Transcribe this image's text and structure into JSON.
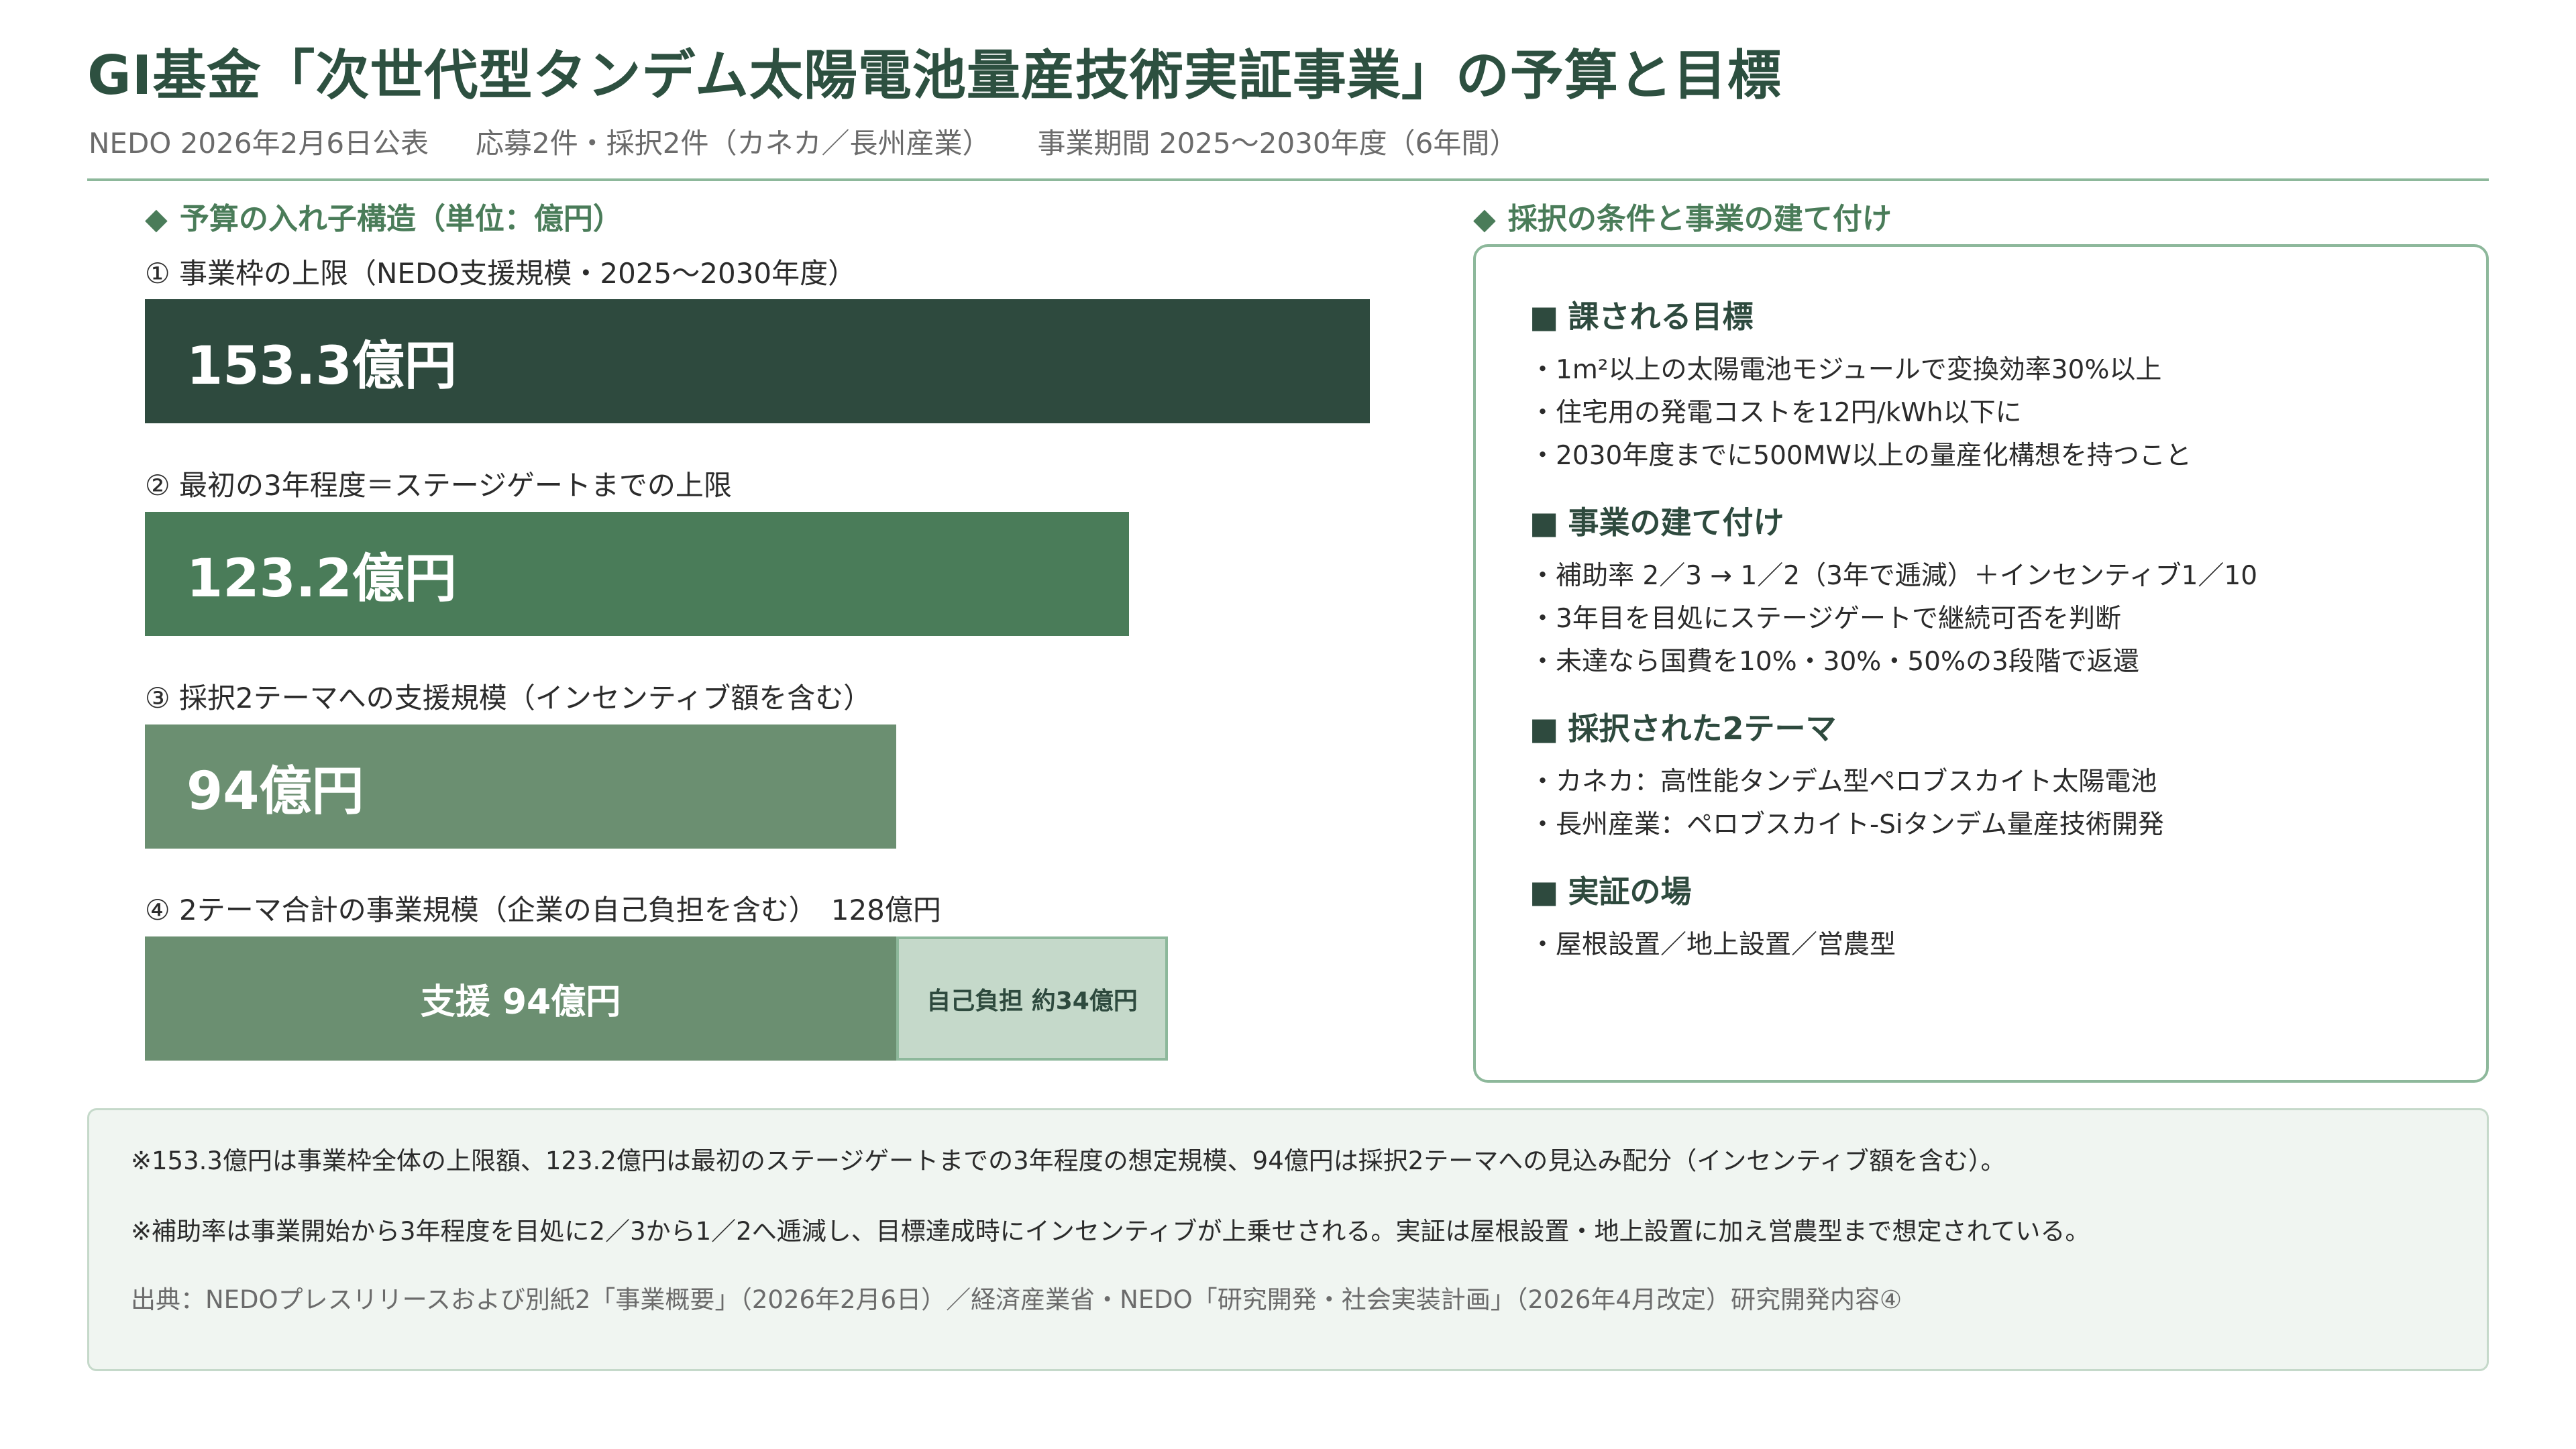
{
  "header": {
    "title": "GI基金「次世代型タンデム太陽電池量産技術実証事業」の予算と目標",
    "subtitle_parts": [
      "NEDO 2026年2月6日公表",
      "応募2件・採択2件（カネカ／長州産業）",
      "事業期間 2025〜2030年度（6年間）"
    ]
  },
  "left_section": {
    "marker": "◆",
    "title": "予算の入れ子構造（単位：億円）"
  },
  "right_section": {
    "marker": "◆",
    "title": "採択の条件と事業の建て付け"
  },
  "chart_data": {
    "type": "bar",
    "orientation": "horizontal",
    "unit": "億円",
    "xlim": [
      0,
      153.3
    ],
    "bars": [
      {
        "label": "① 事業枠の上限（NEDO支援規模・2025〜2030年度）",
        "value": 153.3,
        "value_label": "153.3億円",
        "color": "#2e4a3e"
      },
      {
        "label": "② 最初の3年程度＝ステージゲートまでの上限",
        "value": 123.2,
        "value_label": "123.2億円",
        "color": "#4a7c59"
      },
      {
        "label": "③ 採択2テーマへの支援規模（インセンティブ額を含む）",
        "value": 94,
        "value_label": "94億円",
        "color": "#6b8f71"
      }
    ],
    "stacked": {
      "label": "④ 2テーマ合計の事業規模（企業の自己負担を含む）　128億円",
      "total": 128,
      "segments": [
        {
          "value": 94,
          "value_label": "支援 94億円",
          "color": "#6b8f71"
        },
        {
          "value": 34,
          "value_label": "自己負担 約34億円",
          "color": "#c5d9ca"
        }
      ]
    }
  },
  "panel": {
    "square": "■",
    "blocks": [
      {
        "title": "課される目標",
        "items": [
          "・1m²以上の太陽電池モジュールで変換効率30%以上",
          "・住宅用の発電コストを12円/kWh以下に",
          "・2030年度までに500MW以上の量産化構想を持つこと"
        ]
      },
      {
        "title": "事業の建て付け",
        "items": [
          "・補助率 2／3 → 1／2（3年で逓減）＋インセンティブ1／10",
          "・3年目を目処にステージゲートで継続可否を判断",
          "・未達なら国費を10%・30%・50%の3段階で返還"
        ]
      },
      {
        "title": "採択された2テーマ",
        "items": [
          "・カネカ：高性能タンデム型ペロブスカイト太陽電池",
          "・長州産業：ペロブスカイト-Siタンデム量産技術開発"
        ]
      },
      {
        "title": "実証の場",
        "items": [
          "・屋根設置／地上設置／営農型"
        ]
      }
    ]
  },
  "notes": {
    "note1": "※153.3億円は事業枠全体の上限額、123.2億円は最初のステージゲートまでの3年程度の想定規模、94億円は採択2テーマへの見込み配分（インセンティブ額を含む）。",
    "note2": "※補助率は事業開始から3年程度を目処に2／3から1／2へ逓減し、目標達成時にインセンティブが上乗せされる。実証は屋根設置・地上設置に加え営農型まで想定されている。",
    "source": "出典：NEDOプレスリリースおよび別紙2「事業概要」（2026年2月6日）／経済産業省・NEDO「研究開発・社会実装計画」（2026年4月改定）研究開発内容④"
  }
}
